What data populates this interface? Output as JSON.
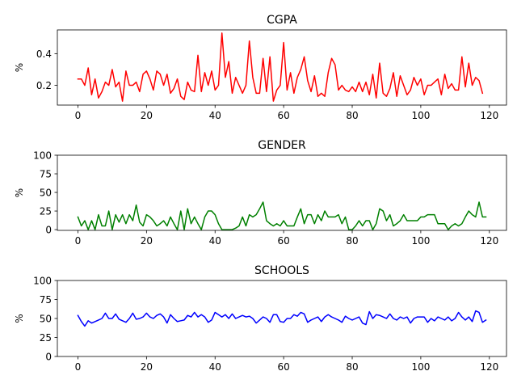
{
  "chart_data": [
    {
      "type": "line",
      "title": "CGPA",
      "xlabel": "",
      "ylabel": "%",
      "xlim": [
        -6,
        125
      ],
      "ylim": [
        0.075,
        0.55
      ],
      "xticks": [
        0,
        20,
        40,
        60,
        80,
        100,
        120
      ],
      "yticks": [
        0.2,
        0.4
      ],
      "ytick_labels": [
        "0.2",
        "0.4"
      ],
      "color": "#ff0000",
      "series": [
        {
          "values": [
            0.24,
            0.24,
            0.2,
            0.31,
            0.14,
            0.24,
            0.12,
            0.16,
            0.22,
            0.2,
            0.3,
            0.19,
            0.22,
            0.1,
            0.29,
            0.2,
            0.2,
            0.22,
            0.16,
            0.27,
            0.29,
            0.24,
            0.17,
            0.29,
            0.27,
            0.2,
            0.27,
            0.15,
            0.18,
            0.24,
            0.13,
            0.11,
            0.22,
            0.17,
            0.16,
            0.39,
            0.16,
            0.28,
            0.2,
            0.29,
            0.17,
            0.2,
            0.53,
            0.25,
            0.35,
            0.15,
            0.25,
            0.2,
            0.15,
            0.2,
            0.48,
            0.25,
            0.15,
            0.15,
            0.37,
            0.16,
            0.38,
            0.1,
            0.17,
            0.2,
            0.47,
            0.17,
            0.28,
            0.15,
            0.25,
            0.3,
            0.38,
            0.23,
            0.16,
            0.26,
            0.13,
            0.15,
            0.13,
            0.28,
            0.37,
            0.33,
            0.17,
            0.2,
            0.17,
            0.16,
            0.19,
            0.16,
            0.22,
            0.16,
            0.22,
            0.14,
            0.27,
            0.12,
            0.34,
            0.15,
            0.13,
            0.18,
            0.28,
            0.13,
            0.26,
            0.2,
            0.14,
            0.17,
            0.25,
            0.2,
            0.24,
            0.14,
            0.2,
            0.2,
            0.22,
            0.24,
            0.14,
            0.27,
            0.18,
            0.21,
            0.17,
            0.17,
            0.38,
            0.19,
            0.34,
            0.2,
            0.25,
            0.23,
            0.15
          ]
        }
      ]
    },
    {
      "type": "line",
      "title": "GENDER",
      "xlabel": "",
      "ylabel": "%",
      "xlim": [
        -6,
        125
      ],
      "ylim": [
        -1,
        100
      ],
      "xticks": [
        0,
        20,
        40,
        60,
        80,
        100,
        120
      ],
      "yticks": [
        0,
        25,
        50,
        75,
        100
      ],
      "ytick_labels": [
        "0",
        "25",
        "50",
        "75",
        "100"
      ],
      "color": "#008000",
      "series": [
        {
          "values": [
            17,
            5,
            12,
            0,
            12,
            0,
            20,
            5,
            5,
            25,
            0,
            20,
            10,
            20,
            8,
            20,
            12,
            33,
            10,
            5,
            20,
            17,
            12,
            5,
            8,
            12,
            5,
            17,
            8,
            0,
            25,
            0,
            28,
            8,
            17,
            8,
            0,
            17,
            25,
            25,
            20,
            8,
            0,
            0,
            0,
            0,
            2,
            5,
            17,
            5,
            20,
            17,
            20,
            28,
            37,
            12,
            8,
            5,
            8,
            5,
            12,
            5,
            5,
            5,
            17,
            28,
            8,
            20,
            20,
            8,
            20,
            12,
            25,
            17,
            17,
            17,
            20,
            8,
            17,
            0,
            0,
            5,
            12,
            5,
            12,
            12,
            0,
            8,
            28,
            25,
            12,
            20,
            5,
            8,
            12,
            20,
            12,
            12,
            12,
            12,
            17,
            17,
            20,
            20,
            20,
            8,
            8,
            8,
            0,
            5,
            8,
            5,
            8,
            17,
            25,
            20,
            17,
            37,
            17,
            17
          ]
        }
      ]
    },
    {
      "type": "line",
      "title": "SCHOOLS",
      "xlabel": "",
      "ylabel": "%",
      "xlim": [
        -6,
        125
      ],
      "ylim": [
        0,
        100
      ],
      "xticks": [
        0,
        20,
        40,
        60,
        80,
        100,
        120
      ],
      "yticks": [
        0,
        25,
        50,
        75,
        100
      ],
      "ytick_labels": [
        "0",
        "25",
        "50",
        "75",
        "100"
      ],
      "color": "#0000ff",
      "series": [
        {
          "values": [
            54,
            46,
            40,
            47,
            44,
            46,
            48,
            50,
            57,
            50,
            50,
            56,
            49,
            47,
            45,
            50,
            57,
            49,
            50,
            52,
            57,
            52,
            50,
            54,
            56,
            52,
            44,
            55,
            50,
            46,
            47,
            48,
            54,
            52,
            58,
            52,
            55,
            52,
            45,
            48,
            58,
            55,
            52,
            55,
            50,
            56,
            50,
            52,
            54,
            52,
            53,
            50,
            44,
            48,
            52,
            50,
            45,
            55,
            55,
            46,
            45,
            50,
            50,
            55,
            53,
            58,
            56,
            45,
            48,
            50,
            52,
            46,
            52,
            55,
            52,
            50,
            48,
            45,
            53,
            50,
            48,
            50,
            52,
            44,
            42,
            59,
            50,
            55,
            54,
            52,
            50,
            56,
            50,
            48,
            52,
            50,
            52,
            44,
            50,
            52,
            52,
            52,
            45,
            50,
            47,
            52,
            50,
            48,
            52,
            47,
            50,
            58,
            52,
            48,
            52,
            46,
            60,
            58,
            45,
            48
          ]
        }
      ]
    }
  ]
}
